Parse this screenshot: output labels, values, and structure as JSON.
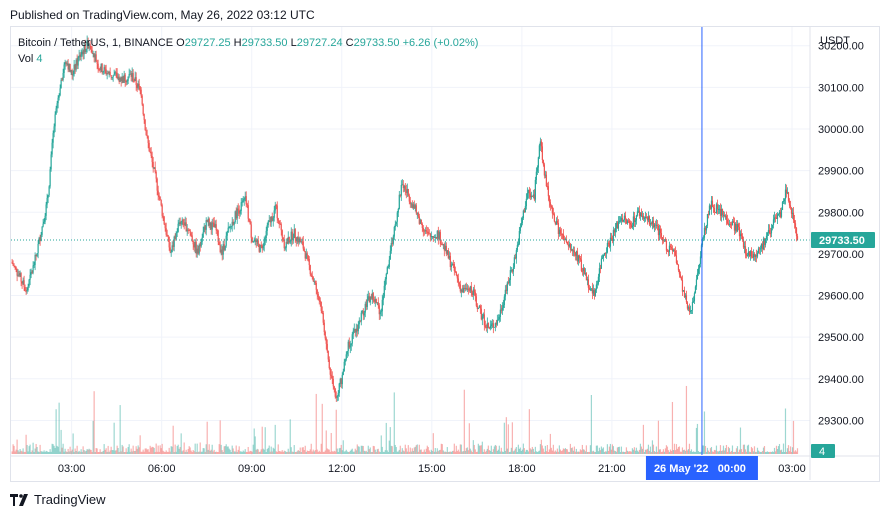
{
  "header": {
    "published": "Published on TradingView.com, May 26, 2022 03:12 UTC"
  },
  "legend": {
    "symbol": "Bitcoin / TetherUS, 1, BINANCE",
    "o_label": "O",
    "o": "29727.25",
    "h_label": "H",
    "h": "29733.50",
    "l_label": "L",
    "l": "29727.24",
    "c_label": "C",
    "c": "29733.50",
    "change": "+6.26 (+0.02%)",
    "vol_label": "Vol",
    "vol": "4"
  },
  "footer": {
    "brand": "TradingView",
    "logo_icon": "tradingview-logo-icon"
  },
  "colors": {
    "up": "#26a69a",
    "down": "#ef5350",
    "crosshair": "#2962ff",
    "grid": "#f0f3fa"
  },
  "chart_data": {
    "type": "candlestick",
    "currency": "USDT",
    "y_ticks": [
      "30200.00",
      "30100.00",
      "30000.00",
      "29900.00",
      "29800.00",
      "29700.00",
      "29600.00",
      "29500.00",
      "29400.00",
      "29300.00"
    ],
    "ylim": [
      29217,
      30245
    ],
    "x_ticks": [
      "03:00",
      "06:00",
      "09:00",
      "12:00",
      "15:00",
      "18:00",
      "21:00",
      "03:00"
    ],
    "x_tick_hours": [
      3,
      6,
      9,
      12,
      15,
      18,
      21,
      27
    ],
    "xlim_hours": [
      0.98,
      27.6
    ],
    "last_price": "29733.50",
    "last_volume": "4",
    "crosshair_label": "26 May '22   00:00",
    "crosshair_hour": 24,
    "price_path": [
      [
        1.0,
        29680
      ],
      [
        1.3,
        29640
      ],
      [
        1.5,
        29610
      ],
      [
        1.8,
        29690
      ],
      [
        2.0,
        29760
      ],
      [
        2.2,
        29830
      ],
      [
        2.4,
        30000
      ],
      [
        2.6,
        30100
      ],
      [
        2.8,
        30170
      ],
      [
        3.0,
        30130
      ],
      [
        3.3,
        30180
      ],
      [
        3.6,
        30210
      ],
      [
        3.9,
        30150
      ],
      [
        4.3,
        30130
      ],
      [
        4.7,
        30120
      ],
      [
        5.0,
        30130
      ],
      [
        5.3,
        30090
      ],
      [
        5.5,
        29980
      ],
      [
        5.8,
        29880
      ],
      [
        6.1,
        29770
      ],
      [
        6.3,
        29700
      ],
      [
        6.6,
        29780
      ],
      [
        6.9,
        29760
      ],
      [
        7.2,
        29700
      ],
      [
        7.5,
        29780
      ],
      [
        7.8,
        29760
      ],
      [
        8.0,
        29700
      ],
      [
        8.2,
        29750
      ],
      [
        8.5,
        29800
      ],
      [
        8.8,
        29830
      ],
      [
        9.0,
        29740
      ],
      [
        9.3,
        29710
      ],
      [
        9.5,
        29760
      ],
      [
        9.8,
        29810
      ],
      [
        10.1,
        29720
      ],
      [
        10.4,
        29750
      ],
      [
        10.7,
        29720
      ],
      [
        11.0,
        29650
      ],
      [
        11.3,
        29580
      ],
      [
        11.6,
        29420
      ],
      [
        11.8,
        29360
      ],
      [
        12.0,
        29400
      ],
      [
        12.2,
        29480
      ],
      [
        12.5,
        29520
      ],
      [
        12.8,
        29580
      ],
      [
        13.0,
        29600
      ],
      [
        13.3,
        29560
      ],
      [
        13.6,
        29700
      ],
      [
        13.8,
        29780
      ],
      [
        14.0,
        29870
      ],
      [
        14.3,
        29830
      ],
      [
        14.6,
        29780
      ],
      [
        14.9,
        29740
      ],
      [
        15.2,
        29750
      ],
      [
        15.5,
        29700
      ],
      [
        15.8,
        29650
      ],
      [
        16.0,
        29610
      ],
      [
        16.3,
        29620
      ],
      [
        16.6,
        29560
      ],
      [
        16.9,
        29520
      ],
      [
        17.2,
        29540
      ],
      [
        17.5,
        29620
      ],
      [
        17.8,
        29700
      ],
      [
        18.0,
        29780
      ],
      [
        18.2,
        29850
      ],
      [
        18.4,
        29830
      ],
      [
        18.6,
        29980
      ],
      [
        18.8,
        29870
      ],
      [
        19.0,
        29800
      ],
      [
        19.2,
        29760
      ],
      [
        19.5,
        29720
      ],
      [
        19.8,
        29700
      ],
      [
        20.1,
        29650
      ],
      [
        20.4,
        29600
      ],
      [
        20.7,
        29700
      ],
      [
        21.0,
        29740
      ],
      [
        21.3,
        29790
      ],
      [
        21.6,
        29770
      ],
      [
        21.9,
        29800
      ],
      [
        22.2,
        29780
      ],
      [
        22.5,
        29760
      ],
      [
        22.8,
        29720
      ],
      [
        23.1,
        29700
      ],
      [
        23.4,
        29600
      ],
      [
        23.6,
        29560
      ],
      [
        23.8,
        29620
      ],
      [
        24.0,
        29730
      ],
      [
        24.3,
        29820
      ],
      [
        24.6,
        29800
      ],
      [
        24.9,
        29780
      ],
      [
        25.2,
        29760
      ],
      [
        25.5,
        29700
      ],
      [
        25.8,
        29700
      ],
      [
        26.1,
        29730
      ],
      [
        26.4,
        29780
      ],
      [
        26.6,
        29790
      ],
      [
        26.8,
        29850
      ],
      [
        27.0,
        29800
      ],
      [
        27.2,
        29734
      ]
    ]
  }
}
